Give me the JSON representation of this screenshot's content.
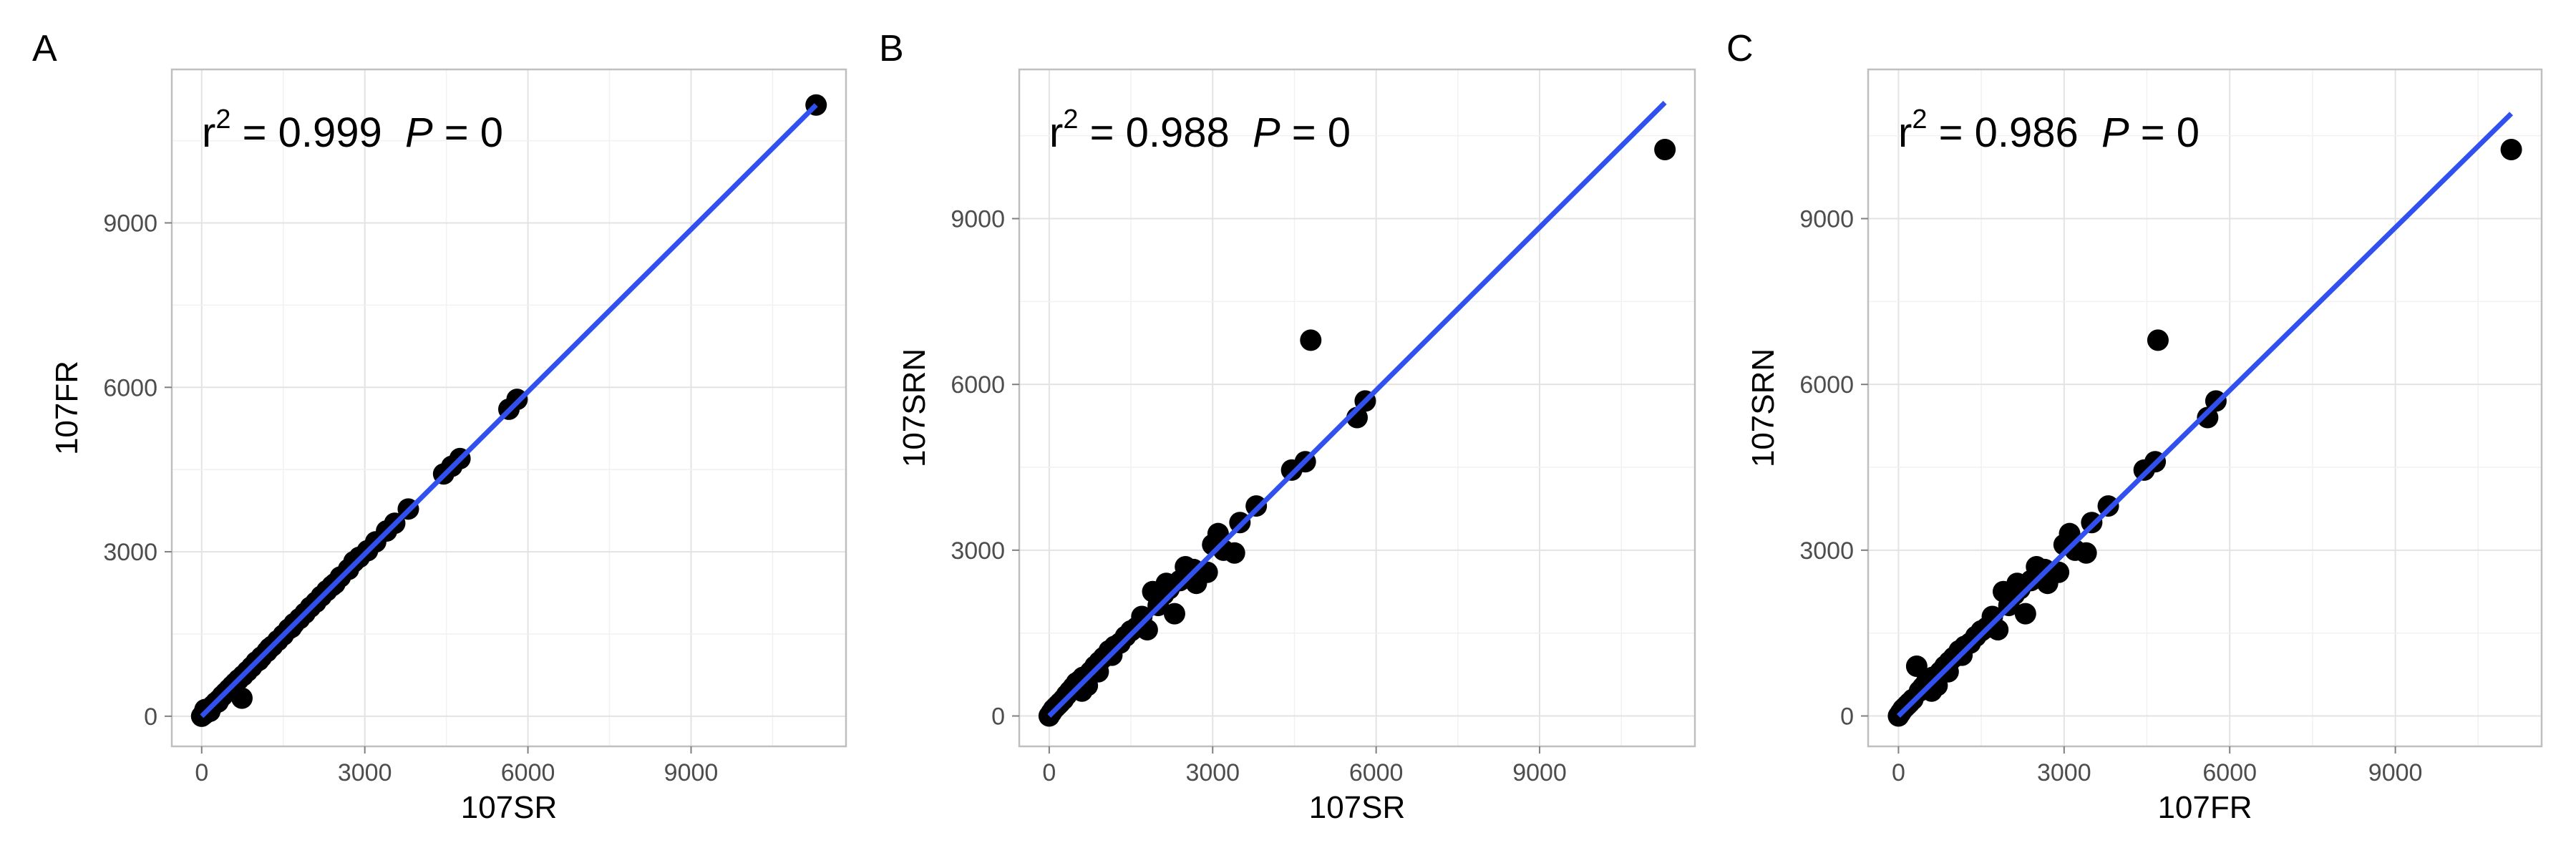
{
  "chart_data": [
    {
      "type": "scatter",
      "panel": "A",
      "xlabel": "107SR",
      "ylabel": "107FR",
      "xticks": [
        0,
        3000,
        6000,
        9000
      ],
      "yticks": [
        0,
        3000,
        6000,
        9000
      ],
      "xlim": [
        -550,
        11850
      ],
      "ylim": [
        -550,
        11800
      ],
      "grid": true,
      "annotation": {
        "r_label": "r",
        "r_exp": "2",
        "r2_text": " = 0.999  ",
        "p_label": "P",
        "p_text": " = 0"
      },
      "fit_line": {
        "x": [
          0,
          11300
        ],
        "y": [
          0,
          11150
        ],
        "color": "#3050f0"
      },
      "points": [
        [
          0,
          0
        ],
        [
          40,
          30
        ],
        [
          80,
          70
        ],
        [
          120,
          110
        ],
        [
          160,
          150
        ],
        [
          200,
          190
        ],
        [
          260,
          250
        ],
        [
          320,
          300
        ],
        [
          380,
          370
        ],
        [
          440,
          430
        ],
        [
          500,
          490
        ],
        [
          560,
          550
        ],
        [
          620,
          610
        ],
        [
          680,
          670
        ],
        [
          760,
          740
        ],
        [
          840,
          820
        ],
        [
          920,
          900
        ],
        [
          1000,
          990
        ],
        [
          1100,
          1080
        ],
        [
          1200,
          1180
        ],
        [
          1300,
          1280
        ],
        [
          1400,
          1380
        ],
        [
          1500,
          1480
        ],
        [
          1600,
          1590
        ],
        [
          1700,
          1690
        ],
        [
          1800,
          1780
        ],
        [
          1900,
          1880
        ],
        [
          2000,
          1990
        ],
        [
          2100,
          2080
        ],
        [
          2200,
          2190
        ],
        [
          2300,
          2290
        ],
        [
          2400,
          2380
        ],
        [
          2550,
          2540
        ],
        [
          2700,
          2680
        ],
        [
          2900,
          2900
        ],
        [
          3050,
          3020
        ],
        [
          3200,
          3180
        ],
        [
          3400,
          3380
        ],
        [
          3550,
          3520
        ],
        [
          3800,
          3780
        ],
        [
          4450,
          4420
        ],
        [
          4600,
          4560
        ],
        [
          4750,
          4700
        ],
        [
          5650,
          5600
        ],
        [
          5800,
          5780
        ],
        [
          11300,
          11150
        ],
        [
          740,
          330
        ],
        [
          60,
          120
        ],
        [
          150,
          90
        ],
        [
          300,
          260
        ],
        [
          1050,
          1020
        ],
        [
          1250,
          1240
        ],
        [
          2800,
          2820
        ],
        [
          1650,
          1620
        ],
        [
          2450,
          2420
        ]
      ],
      "point_color": "#000000"
    },
    {
      "type": "scatter",
      "panel": "B",
      "xlabel": "107SR",
      "ylabel": "107SRN",
      "xticks": [
        0,
        3000,
        6000,
        9000
      ],
      "yticks": [
        0,
        3000,
        6000,
        9000
      ],
      "xlim": [
        -550,
        11850
      ],
      "ylim": [
        -550,
        11700
      ],
      "grid": true,
      "annotation": {
        "r_label": "r",
        "r_exp": "2",
        "r2_text": " = 0.988  ",
        "p_label": "P",
        "p_text": " = 0"
      },
      "fit_line": {
        "x": [
          0,
          11300
        ],
        "y": [
          0,
          11100
        ],
        "color": "#3050f0"
      },
      "points": [
        [
          0,
          0
        ],
        [
          40,
          60
        ],
        [
          80,
          120
        ],
        [
          120,
          160
        ],
        [
          160,
          200
        ],
        [
          200,
          240
        ],
        [
          260,
          300
        ],
        [
          320,
          380
        ],
        [
          380,
          450
        ],
        [
          440,
          520
        ],
        [
          500,
          600
        ],
        [
          560,
          640
        ],
        [
          620,
          700
        ],
        [
          680,
          720
        ],
        [
          760,
          800
        ],
        [
          840,
          900
        ],
        [
          920,
          980
        ],
        [
          1000,
          1060
        ],
        [
          1100,
          1180
        ],
        [
          1200,
          1260
        ],
        [
          1300,
          1320
        ],
        [
          1400,
          1440
        ],
        [
          1500,
          1540
        ],
        [
          1600,
          1600
        ],
        [
          1700,
          1800
        ],
        [
          1800,
          1560
        ],
        [
          1900,
          2250
        ],
        [
          2000,
          2000
        ],
        [
          2100,
          2200
        ],
        [
          2200,
          2300
        ],
        [
          2300,
          1850
        ],
        [
          2400,
          2450
        ],
        [
          2500,
          2700
        ],
        [
          2650,
          2650
        ],
        [
          2700,
          2400
        ],
        [
          2900,
          2600
        ],
        [
          3000,
          3100
        ],
        [
          3100,
          3300
        ],
        [
          3200,
          3000
        ],
        [
          3400,
          2950
        ],
        [
          3500,
          3500
        ],
        [
          3800,
          3800
        ],
        [
          4450,
          4450
        ],
        [
          4700,
          4600
        ],
        [
          4800,
          6800
        ],
        [
          5650,
          5400
        ],
        [
          5800,
          5700
        ],
        [
          11300,
          10250
        ],
        [
          600,
          450
        ],
        [
          700,
          550
        ],
        [
          900,
          800
        ],
        [
          1150,
          1100
        ],
        [
          2150,
          2400
        ],
        [
          2550,
          2500
        ]
      ],
      "point_color": "#000000"
    },
    {
      "type": "scatter",
      "panel": "C",
      "xlabel": "107FR",
      "ylabel": "107SRN",
      "xticks": [
        0,
        3000,
        6000,
        9000
      ],
      "yticks": [
        0,
        3000,
        6000,
        9000
      ],
      "xlim": [
        -550,
        11650
      ],
      "ylim": [
        -550,
        11700
      ],
      "grid": true,
      "annotation": {
        "r_label": "r",
        "r_exp": "2",
        "r2_text": " = 0.986  ",
        "p_label": "P",
        "p_text": " = 0"
      },
      "fit_line": {
        "x": [
          0,
          11100
        ],
        "y": [
          0,
          10900
        ],
        "color": "#3050f0"
      },
      "points": [
        [
          0,
          0
        ],
        [
          40,
          60
        ],
        [
          80,
          120
        ],
        [
          120,
          160
        ],
        [
          160,
          200
        ],
        [
          200,
          240
        ],
        [
          260,
          300
        ],
        [
          330,
          900
        ],
        [
          380,
          450
        ],
        [
          440,
          520
        ],
        [
          500,
          600
        ],
        [
          560,
          640
        ],
        [
          620,
          700
        ],
        [
          680,
          720
        ],
        [
          760,
          800
        ],
        [
          840,
          900
        ],
        [
          920,
          980
        ],
        [
          1000,
          1060
        ],
        [
          1100,
          1180
        ],
        [
          1200,
          1260
        ],
        [
          1300,
          1320
        ],
        [
          1400,
          1440
        ],
        [
          1500,
          1540
        ],
        [
          1600,
          1600
        ],
        [
          1700,
          1800
        ],
        [
          1800,
          1560
        ],
        [
          1900,
          2250
        ],
        [
          2000,
          2000
        ],
        [
          2100,
          2200
        ],
        [
          2200,
          2300
        ],
        [
          2300,
          1850
        ],
        [
          2400,
          2450
        ],
        [
          2500,
          2700
        ],
        [
          2650,
          2650
        ],
        [
          2700,
          2400
        ],
        [
          2900,
          2600
        ],
        [
          3000,
          3100
        ],
        [
          3100,
          3300
        ],
        [
          3200,
          3000
        ],
        [
          3400,
          2950
        ],
        [
          3500,
          3500
        ],
        [
          3800,
          3800
        ],
        [
          4450,
          4450
        ],
        [
          4650,
          4600
        ],
        [
          4700,
          6800
        ],
        [
          5600,
          5400
        ],
        [
          5750,
          5700
        ],
        [
          11100,
          10250
        ],
        [
          600,
          450
        ],
        [
          700,
          550
        ],
        [
          900,
          800
        ],
        [
          1150,
          1100
        ],
        [
          2150,
          2400
        ],
        [
          2550,
          2500
        ]
      ],
      "point_color": "#000000"
    }
  ]
}
